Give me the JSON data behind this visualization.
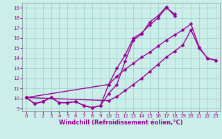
{
  "bg_color": "#cceee8",
  "line_color": "#990099",
  "grid_color": "#99cccc",
  "xlim": [
    -0.5,
    23.5
  ],
  "ylim": [
    8.75,
    19.5
  ],
  "xticks": [
    0,
    1,
    2,
    3,
    4,
    5,
    6,
    7,
    8,
    9,
    10,
    11,
    12,
    13,
    14,
    15,
    16,
    17,
    18,
    19,
    20,
    21,
    22,
    23
  ],
  "yticks": [
    9,
    10,
    11,
    12,
    13,
    14,
    15,
    16,
    17,
    18,
    19
  ],
  "xlabel": "Windchill (Refroidissement éolien,°C)",
  "tick_fontsize": 5,
  "xlabel_fontsize": 6,
  "lines": [
    {
      "x": [
        0,
        1,
        2,
        3,
        4,
        5,
        6,
        7,
        8,
        9,
        10,
        11,
        12,
        13,
        14,
        15,
        16,
        17,
        18
      ],
      "y": [
        10.1,
        9.5,
        9.7,
        10.1,
        9.6,
        9.6,
        9.7,
        9.3,
        9.1,
        9.3,
        10.5,
        11.4,
        13.7,
        15.8,
        16.4,
        17.6,
        18.2,
        19.1,
        18.2
      ]
    },
    {
      "x": [
        0,
        1,
        2,
        3,
        4,
        5,
        6,
        7,
        8,
        9,
        10,
        11,
        12,
        13,
        14,
        15,
        16,
        17,
        18
      ],
      "y": [
        10.1,
        9.5,
        9.7,
        10.1,
        9.6,
        9.6,
        9.7,
        9.3,
        9.1,
        9.3,
        11.4,
        13.0,
        14.3,
        16.0,
        16.5,
        17.3,
        18.0,
        19.0,
        18.4
      ]
    },
    {
      "x": [
        0,
        10,
        11,
        12,
        13,
        14,
        15,
        16,
        17,
        18,
        19,
        20,
        21,
        22,
        23
      ],
      "y": [
        10.1,
        9.8,
        10.2,
        10.8,
        11.4,
        12.0,
        12.7,
        13.4,
        14.1,
        14.7,
        15.3,
        16.8,
        15.0,
        14.0,
        13.8
      ]
    },
    {
      "x": [
        0,
        10,
        11,
        12,
        13,
        14,
        15,
        16,
        17,
        18,
        19,
        20,
        21,
        22,
        23
      ],
      "y": [
        10.1,
        11.4,
        12.2,
        12.9,
        13.5,
        14.1,
        14.6,
        15.2,
        15.8,
        16.3,
        16.8,
        17.4,
        15.1,
        14.0,
        13.8
      ]
    }
  ],
  "marker": "D",
  "markersize": 2.5,
  "linewidth": 1.0
}
